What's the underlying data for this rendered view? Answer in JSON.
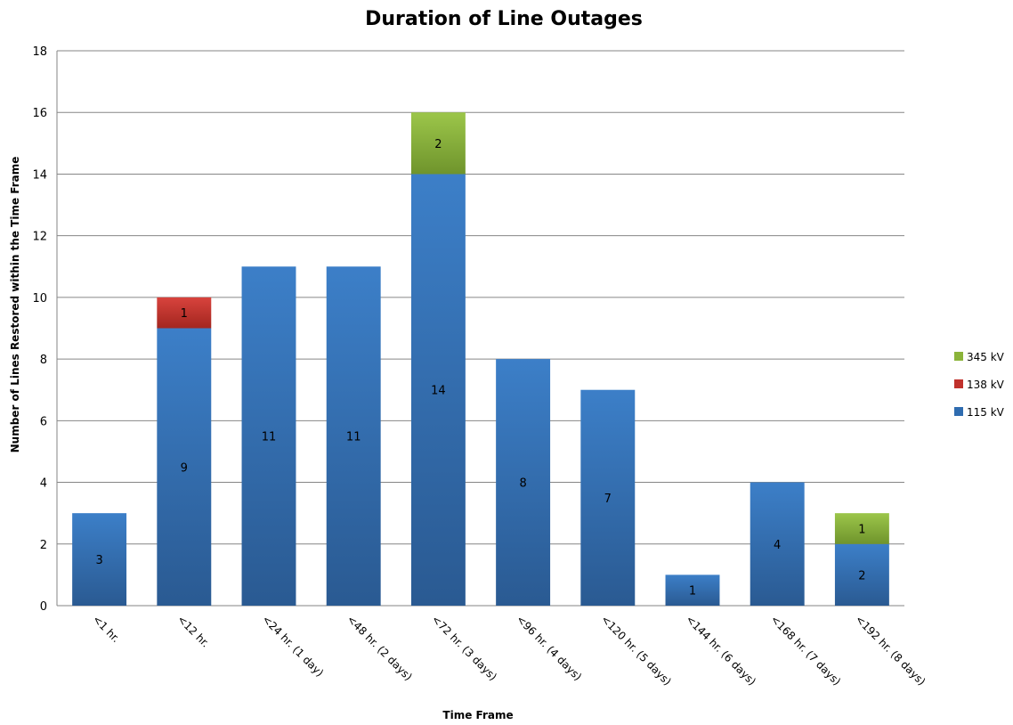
{
  "chart_data": {
    "type": "bar",
    "stacked": true,
    "title": "Duration of Line Outages",
    "xlabel": "Time Frame",
    "ylabel": "Number of Lines Restored within the Time Frame",
    "ylim": [
      0,
      18
    ],
    "yticks": [
      0,
      2,
      4,
      6,
      8,
      10,
      12,
      14,
      16,
      18
    ],
    "grid": true,
    "legend_position": "right",
    "categories": [
      "<1 hr.",
      "<12 hr.",
      "<24 hr. (1 day)",
      "<48 hr. (2 days)",
      "<72 hr. (3 days)",
      "<96 hr. (4 days)",
      "<120 hr. (5 days)",
      "<144 hr. (6 days)",
      "<168 hr. (7 days)",
      "<192 hr. (8 days)"
    ],
    "series": [
      {
        "name": "115 kV",
        "color": "#2f6cb0",
        "values": [
          3,
          9,
          11,
          11,
          14,
          8,
          7,
          1,
          4,
          2
        ]
      },
      {
        "name": "138 kV",
        "color": "#c0312c",
        "values": [
          0,
          1,
          0,
          0,
          0,
          0,
          0,
          0,
          0,
          0
        ]
      },
      {
        "name": "345 kV",
        "color": "#8bb43a",
        "values": [
          0,
          0,
          0,
          0,
          2,
          0,
          0,
          0,
          0,
          1
        ]
      }
    ]
  }
}
